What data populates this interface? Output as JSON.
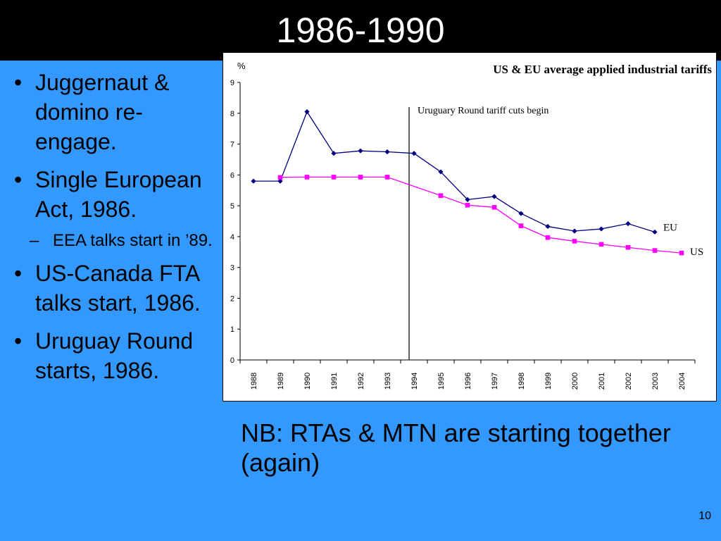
{
  "slide": {
    "title": "1986-1990",
    "bullets": [
      {
        "text": "Juggernaut & domino re-engage."
      },
      {
        "text": "Single European Act, 1986."
      },
      {
        "text": "EEA talks start in ’89.",
        "sub": true
      },
      {
        "text": "US-Canada FTA talks start, 1986."
      },
      {
        "text": "Uruguay Round starts, 1986."
      }
    ],
    "nb_text": "NB: RTAs & MTN are starting together (again)",
    "page_number": "10",
    "colors": {
      "background": "#3399ff",
      "title_bar": "#000000"
    }
  },
  "chart_data": {
    "type": "line",
    "title": "US & EU average applied industrial tariffs",
    "ylabel": "%",
    "xlabel": "",
    "categories": [
      "1988",
      "1989",
      "1990",
      "1991",
      "1992",
      "1993",
      "1994",
      "1995",
      "1996",
      "1997",
      "1998",
      "1999",
      "2000",
      "2001",
      "2002",
      "2003",
      "2004"
    ],
    "yticks": [
      "0",
      "1",
      "2",
      "3",
      "4",
      "5",
      "6",
      "7",
      "8",
      "9"
    ],
    "ylim": [
      0,
      9
    ],
    "grid": false,
    "series": [
      {
        "name": "EU",
        "color": "#000080",
        "marker": "diamond",
        "values": [
          5.8,
          5.8,
          8.05,
          6.7,
          6.78,
          6.75,
          6.7,
          6.1,
          5.2,
          5.3,
          4.75,
          4.33,
          4.18,
          4.25,
          4.42,
          4.15,
          null
        ]
      },
      {
        "name": "US",
        "color": "#ff00ff",
        "marker": "square",
        "values": [
          null,
          5.92,
          5.93,
          5.93,
          5.93,
          5.93,
          null,
          5.33,
          5.02,
          4.95,
          4.35,
          3.97,
          3.85,
          3.75,
          3.65,
          3.55,
          3.47
        ]
      }
    ],
    "annotation": {
      "text": "Uruguary Round tariff cuts begin",
      "at": "1994"
    }
  }
}
